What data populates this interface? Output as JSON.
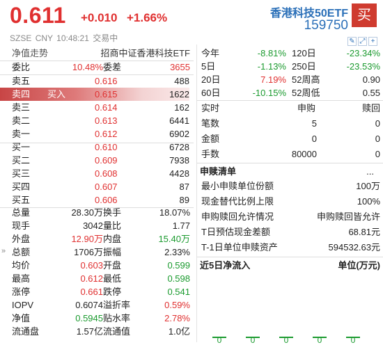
{
  "header": {
    "price": "0.611",
    "change": "+0.010",
    "change_pct": "+1.66%",
    "market": "SZSE",
    "currency": "CNY",
    "time": "10:48:21",
    "status": "交易中",
    "name": "香港科技50ETF",
    "code": "159750",
    "buy_label": "买"
  },
  "left": {
    "nav_label": "净值走势",
    "index_name": "招商中证香港科技ETF",
    "weibi_label": "委比",
    "weibi": "10.48%",
    "weicha_label": "委差",
    "weicha": "3655",
    "asks": [
      {
        "label": "卖五",
        "price": "0.616",
        "vol": "488"
      },
      {
        "label": "卖四",
        "price": "0.615",
        "vol": "1622"
      },
      {
        "label": "卖三",
        "price": "0.614",
        "vol": "162"
      },
      {
        "label": "卖二",
        "price": "0.613",
        "vol": "6441"
      },
      {
        "label": "卖一",
        "price": "0.612",
        "vol": "6902"
      }
    ],
    "buy_hint": "买入",
    "bids": [
      {
        "label": "买一",
        "price": "0.610",
        "vol": "6728"
      },
      {
        "label": "买二",
        "price": "0.609",
        "vol": "7938"
      },
      {
        "label": "买三",
        "price": "0.608",
        "vol": "4428"
      },
      {
        "label": "买四",
        "price": "0.607",
        "vol": "87"
      },
      {
        "label": "买五",
        "price": "0.606",
        "vol": "89"
      }
    ],
    "stats": [
      {
        "l1": "总量",
        "v1": "28.30万",
        "c1": "",
        "l2": "换手",
        "v2": "18.07%",
        "c2": ""
      },
      {
        "l1": "现手",
        "v1": "3042",
        "c1": "",
        "l2": "量比",
        "v2": "1.77",
        "c2": ""
      },
      {
        "l1": "外盘",
        "v1": "12.90万",
        "c1": "up",
        "l2": "内盘",
        "v2": "15.40万",
        "c2": "down"
      },
      {
        "l1": "总额",
        "v1": "1706万",
        "c1": "",
        "l2": "振幅",
        "v2": "2.33%",
        "c2": ""
      },
      {
        "l1": "均价",
        "v1": "0.603",
        "c1": "up",
        "l2": "开盘",
        "v2": "0.599",
        "c2": "down"
      },
      {
        "l1": "最高",
        "v1": "0.612",
        "c1": "up",
        "l2": "最低",
        "v2": "0.598",
        "c2": "down"
      },
      {
        "l1": "涨停",
        "v1": "0.661",
        "c1": "up",
        "l2": "跌停",
        "v2": "0.541",
        "c2": "down"
      },
      {
        "l1": "IOPV",
        "v1": "0.6074",
        "c1": "",
        "l2": "溢折率",
        "v2": "0.59%",
        "c2": "up"
      },
      {
        "l1": "净值",
        "v1": "0.5945",
        "c1": "down",
        "l2": "贴水率",
        "v2": "2.78%",
        "c2": "up"
      },
      {
        "l1": "流通盘",
        "v1": "1.57亿",
        "c1": "",
        "l2": "流通值",
        "v2": "1.0亿",
        "c2": ""
      }
    ]
  },
  "right": {
    "perf": [
      {
        "l1": "今年",
        "v1": "-8.81%",
        "c1": "down",
        "l2": "120日",
        "v2": "-23.34%",
        "c2": "down"
      },
      {
        "l1": "5日",
        "v1": "-1.13%",
        "c1": "down",
        "l2": "250日",
        "v2": "-23.53%",
        "c2": "down"
      },
      {
        "l1": "20日",
        "v1": "7.19%",
        "c1": "up",
        "l2": "52周高",
        "v2": "0.90",
        "c2": ""
      },
      {
        "l1": "60日",
        "v1": "-10.15%",
        "c1": "down",
        "l2": "52周低",
        "v2": "0.55",
        "c2": ""
      }
    ],
    "sr_table": {
      "headers": [
        "实时",
        "申购",
        "赎回"
      ],
      "rows": [
        {
          "label": "笔数",
          "sub": "5",
          "red": "0"
        },
        {
          "label": "金额",
          "sub": "0",
          "red": "0"
        },
        {
          "label": "手数",
          "sub": "80000",
          "red": "0"
        }
      ]
    },
    "sr_list": {
      "title": "申赎清单",
      "more": "...",
      "items": [
        {
          "label": "最小申赎单位份额",
          "value": "100万"
        },
        {
          "label": "现金替代比例上限",
          "value": "100%"
        },
        {
          "label": "申购赎回允许情况",
          "value": "申购赎回皆允许"
        },
        {
          "label": "T日预估现金差额",
          "value": "68.81元"
        },
        {
          "label": "T-1日单位申赎资产",
          "value": "594532.63元"
        }
      ]
    },
    "flow": {
      "title": "近5日净流入",
      "unit": "单位(万元)",
      "values": [
        0,
        0,
        0,
        0,
        0
      ],
      "labels": [
        "0",
        "0",
        "0",
        "0",
        "0"
      ]
    }
  },
  "colors": {
    "up": "#e03030",
    "down": "#1a9a2e",
    "accent": "#2a6fb8",
    "buy_button": "#cf3b2f"
  }
}
